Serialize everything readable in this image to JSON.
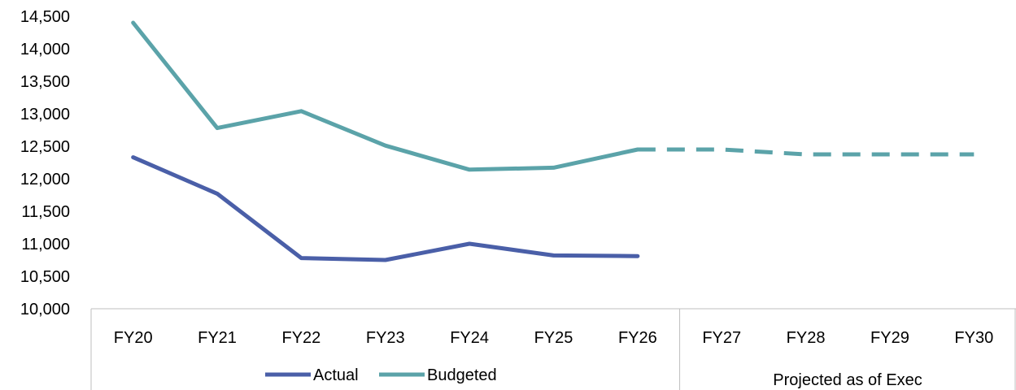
{
  "chart_data": {
    "type": "line",
    "title": "",
    "xlabel": "",
    "ylabel": "",
    "categories": [
      "FY20",
      "FY21",
      "FY22",
      "FY23",
      "FY24",
      "FY25",
      "FY26",
      "FY27",
      "FY28",
      "FY29",
      "FY30"
    ],
    "ylim": [
      10000,
      14500
    ],
    "yticks": [
      "10,000",
      "10,500",
      "11,000",
      "11,500",
      "12,000",
      "12,500",
      "13,000",
      "13,500",
      "14,000",
      "14,500"
    ],
    "ytick_values": [
      10000,
      10500,
      11000,
      11500,
      12000,
      12500,
      13000,
      13500,
      14000,
      14500
    ],
    "grid": false,
    "series": [
      {
        "name": "Actual",
        "color": "#4A5FA8",
        "style": "solid",
        "values": [
          12330,
          11770,
          10780,
          10750,
          11000,
          10820,
          10810,
          null,
          null,
          null,
          null
        ]
      },
      {
        "name": "Budgeted",
        "color": "#5BA3A9",
        "style": "solid-then-dashed",
        "values": [
          14400,
          12780,
          13040,
          12510,
          12140,
          12170,
          12450,
          12450,
          12375,
          12375,
          12375
        ]
      }
    ],
    "legend": {
      "position": "bottom",
      "items": [
        "Actual",
        "Budgeted"
      ]
    },
    "group_label": "Projected as of Exec"
  }
}
